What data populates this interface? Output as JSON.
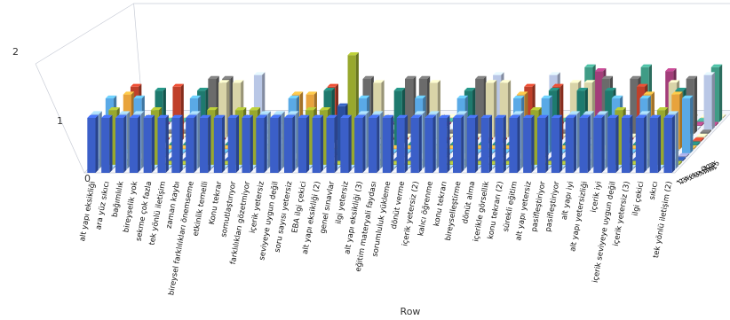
{
  "chart_data": {
    "type": "bar",
    "variant": "3d-grouped",
    "xlabel": "Row",
    "ylim": [
      0,
      2
    ],
    "yticks": [
      "0",
      "1",
      "2"
    ],
    "grid": false,
    "depth_labels": [
      "1",
      "2",
      "3",
      "4",
      "5",
      "6",
      "7",
      "8",
      "9",
      "10",
      "11",
      "12",
      "13",
      "14",
      "15"
    ],
    "categories": [
      "alt yapı eksikliği",
      "ara yüz sıkıcı",
      "bağımlılık",
      "bireyselik yok",
      "sekme çok fazla",
      "tek yönlü iletişim",
      "zaman kaybı",
      "bireysel farklılıkları önemseme",
      "etkinlik temelli",
      "Konu tekrar",
      "somutlaştırıyor",
      "farklılıkları gözetmiyor",
      "içerik yetersiz",
      "seviyeye uygun değil",
      "soru sayısı yetersiz",
      "EBA ilgi çekici",
      "alt yapı eksikliği (2)",
      "genel sınavlar",
      "ilgi yetersiz",
      "alt yapı eksikliği (3)",
      "eğitim materyali faydası",
      "sorumluluk yükleme",
      "dönüt verme",
      "içerik yetersiz (2)",
      "kalıcı öğrenme",
      "konu tekrarı",
      "bireyselleştirme",
      "dönüt alma",
      "içerikle görsellik",
      "konu tekrarı (2)",
      "sürekli eğitim",
      "alt yapı yetersiz",
      "pasifleştiriyor",
      "pasifleştiriyor",
      "alt yapı iyi",
      "alt yapı yetersizliği",
      "içerik iyi",
      "içerik seviyeye uygun değil",
      "içerik yetersiz (3)",
      "ilgi çekici",
      "sıkıcı",
      "tek yönlü iletişim (2)"
    ],
    "series": [
      {
        "color": "#3b5fc8",
        "values": [
          1,
          1,
          1,
          1,
          1,
          1,
          1,
          1,
          1,
          1,
          1,
          1,
          1,
          1,
          1,
          1,
          1,
          1,
          1,
          1,
          1,
          1,
          1,
          1,
          1,
          1,
          1,
          1,
          1,
          1,
          1,
          1,
          1,
          1,
          1,
          1,
          1,
          1,
          1,
          1,
          1,
          1
        ]
      },
      {
        "color": "#8fb8e8",
        "values": [
          1,
          0,
          1,
          1,
          0,
          0,
          0,
          1,
          0,
          0,
          0,
          0,
          1,
          1,
          1,
          0,
          0,
          0,
          0,
          1,
          1,
          0,
          0,
          1,
          1,
          0,
          1,
          0,
          0,
          0,
          1,
          0,
          0,
          0,
          1,
          1,
          1,
          0,
          0,
          1,
          0,
          1
        ]
      },
      {
        "color": "#98a82e",
        "values": [
          0,
          1,
          0,
          0,
          1,
          0,
          0,
          0,
          1,
          0,
          1,
          1,
          0,
          0,
          0,
          1,
          1,
          0,
          2,
          0,
          0,
          0,
          0,
          0,
          0,
          0,
          0,
          0,
          0,
          0,
          0,
          1,
          0,
          0,
          0,
          0,
          0,
          1,
          0,
          0,
          1,
          0
        ]
      },
      {
        "color": "#2a4f9e",
        "values": [
          0,
          0,
          0,
          0,
          0,
          0,
          0,
          0,
          0,
          0,
          0,
          0,
          0,
          0,
          0,
          0,
          0,
          1,
          0,
          0,
          0,
          0,
          0,
          0,
          0,
          0,
          0,
          0,
          0,
          0,
          0,
          0,
          0,
          0,
          0,
          0,
          0,
          0,
          0,
          0,
          0,
          0
        ]
      },
      {
        "color": "#8a8fbf",
        "values": [
          0,
          0,
          0,
          0,
          0,
          0,
          0,
          0,
          0,
          0,
          0,
          0,
          0,
          0,
          0,
          0,
          0,
          0,
          0,
          0,
          0,
          0,
          0,
          0,
          0,
          0,
          0,
          0,
          0,
          0,
          0,
          0,
          0,
          0,
          0,
          0,
          0,
          0,
          0,
          0,
          0,
          0
        ]
      },
      {
        "color": "#5aa9e6",
        "values": [
          1,
          0,
          1,
          0,
          0,
          0,
          1,
          0,
          0,
          0,
          0,
          0,
          0,
          1,
          0,
          0,
          0,
          0,
          1,
          0,
          0,
          0,
          1,
          0,
          0,
          1,
          0,
          0,
          0,
          1,
          0,
          1,
          0,
          0,
          0,
          0,
          1,
          0,
          1,
          0,
          0,
          1
        ]
      },
      {
        "color": "#e8a33c",
        "values": [
          0,
          1,
          0,
          0,
          0,
          0,
          0,
          0,
          0,
          0,
          0,
          0,
          0,
          1,
          1,
          0,
          0,
          0,
          0,
          0,
          0,
          0,
          0,
          0,
          0,
          0,
          0,
          0,
          0,
          1,
          0,
          0,
          0,
          0,
          0,
          0,
          0,
          0,
          1,
          0,
          1,
          0
        ]
      },
      {
        "color": "#1e7a6e",
        "values": [
          0,
          0,
          0,
          1,
          0,
          0,
          1,
          0,
          0,
          0,
          0,
          0,
          0,
          0,
          0,
          1,
          0,
          0,
          0,
          0,
          1,
          0,
          0,
          0,
          0,
          1,
          0,
          0,
          0,
          0,
          0,
          1,
          0,
          1,
          0,
          1,
          0,
          0,
          0,
          0,
          1,
          0
        ]
      },
      {
        "color": "#c0402a",
        "values": [
          0,
          1,
          0,
          0,
          1,
          0,
          0,
          0,
          0,
          0,
          0,
          0,
          0,
          0,
          0,
          1,
          0,
          0,
          0,
          0,
          0,
          0,
          0,
          0,
          0,
          0,
          0,
          0,
          0,
          1,
          0,
          1,
          0,
          0,
          0,
          0,
          0,
          1,
          0,
          0,
          0,
          0
        ]
      },
      {
        "color": "#d9d4a8",
        "values": [
          0,
          0,
          0,
          0,
          0,
          0,
          0,
          1,
          1,
          0,
          0,
          0,
          0,
          0,
          0,
          0,
          0,
          0,
          1,
          0,
          0,
          0,
          1,
          0,
          0,
          0,
          1,
          1,
          0,
          0,
          0,
          0,
          1,
          1,
          0,
          0,
          0,
          0,
          0,
          1,
          0,
          0
        ]
      },
      {
        "color": "#6b6b6b",
        "values": [
          0,
          0,
          0,
          0,
          0,
          0,
          1,
          1,
          0,
          0,
          0,
          0,
          0,
          0,
          0,
          0,
          0,
          1,
          0,
          0,
          1,
          1,
          0,
          0,
          0,
          1,
          0,
          0,
          0,
          0,
          0,
          0,
          0,
          0,
          1,
          0,
          1,
          0,
          0,
          0,
          1,
          0
        ]
      },
      {
        "color": "#b9c7e6",
        "values": [
          0,
          0,
          0,
          0,
          0,
          0,
          0,
          0,
          0,
          1,
          0,
          0,
          0,
          0,
          0,
          0,
          0,
          0,
          0,
          0,
          0,
          0,
          0,
          0,
          0,
          0,
          1,
          0,
          0,
          0,
          1,
          0,
          0,
          0,
          0,
          0,
          0,
          0,
          0,
          0,
          0,
          1
        ]
      },
      {
        "color": "#a33d7a",
        "values": [
          0,
          0,
          0,
          0,
          0,
          0,
          0,
          0,
          0,
          0,
          0,
          0,
          0,
          0,
          0,
          0,
          0,
          0,
          0,
          0,
          0,
          0,
          0,
          0,
          0,
          0,
          0,
          0,
          0,
          0,
          0,
          0,
          0,
          1,
          0,
          0,
          0,
          0,
          1,
          0,
          0,
          0
        ]
      },
      {
        "color": "#3f9c86",
        "values": [
          0,
          0,
          0,
          0,
          0,
          0,
          0,
          0,
          0,
          0,
          0,
          0,
          0,
          0,
          0,
          0,
          0,
          0,
          0,
          0,
          0,
          0,
          0,
          0,
          0,
          0,
          0,
          0,
          0,
          0,
          0,
          0,
          1,
          0,
          0,
          0,
          1,
          0,
          0,
          0,
          0,
          1
        ]
      },
      {
        "color": "#f0e6b0",
        "values": [
          0,
          0,
          0,
          0,
          0,
          0,
          0,
          0,
          0,
          0,
          0,
          0,
          0,
          0,
          0,
          0,
          0,
          0,
          0,
          0,
          0,
          0,
          0,
          0,
          0,
          0,
          0,
          0,
          0,
          0,
          0,
          0,
          0,
          0,
          0,
          0,
          0,
          0,
          0,
          0,
          0,
          0
        ]
      }
    ]
  }
}
